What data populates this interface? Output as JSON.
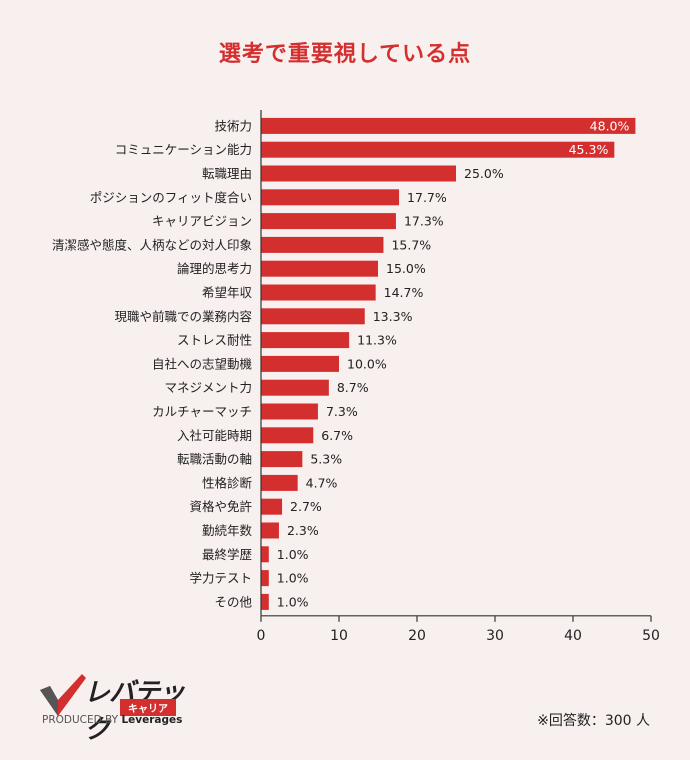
{
  "chart_data": {
    "type": "bar",
    "orientation": "horizontal",
    "title": "選考で重要視している点",
    "categories": [
      "技術力",
      "コミュニケーション能力",
      "転職理由",
      "ポジションのフィット度合い",
      "キャリアビジョン",
      "清潔感や態度、人柄などの対人印象",
      "論理的思考力",
      "希望年収",
      "現職や前職での業務内容",
      "ストレス耐性",
      "自社への志望動機",
      "マネジメント力",
      "カルチャーマッチ",
      "入社可能時期",
      "転職活動の軸",
      "性格診断",
      "資格や免許",
      "勤続年数",
      "最終学歴",
      "学力テスト",
      "その他"
    ],
    "values": [
      48.0,
      45.3,
      25.0,
      17.7,
      17.3,
      15.7,
      15.0,
      14.7,
      13.3,
      11.3,
      10.0,
      8.7,
      7.3,
      6.7,
      5.3,
      4.7,
      2.7,
      2.3,
      1.0,
      1.0,
      1.0
    ],
    "value_labels": [
      "48.0%",
      "45.3%",
      "25.0%",
      "17.7%",
      "17.3%",
      "15.7%",
      "15.0%",
      "14.7%",
      "13.3%",
      "11.3%",
      "10.0%",
      "8.7%",
      "7.3%",
      "6.7%",
      "5.3%",
      "4.7%",
      "2.7%",
      "2.3%",
      "1.0%",
      "1.0%",
      "1.0%"
    ],
    "xlim": [
      0,
      50
    ],
    "xticks": [
      "0",
      "10",
      "20",
      "30",
      "40",
      "50"
    ],
    "bar_color": "#d42f2f",
    "grid": false
  },
  "note": "※回答数：300 人",
  "logo": {
    "name": "レバテック",
    "sub": "キャリア",
    "produced_prefix": "PRODUCED BY",
    "produced_brand": "Leverages"
  }
}
